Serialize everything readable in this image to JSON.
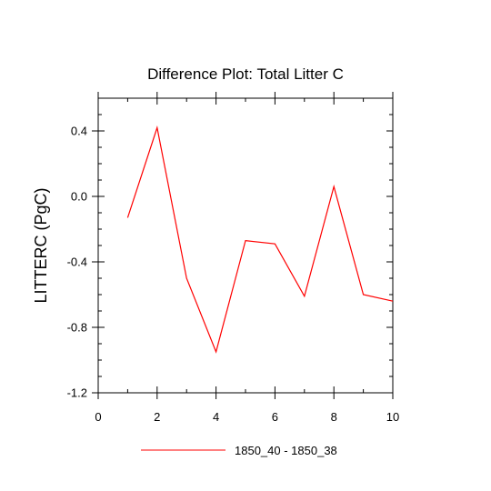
{
  "chart_data": {
    "type": "line",
    "title": "Difference Plot: Total Litter C",
    "xlabel": "",
    "ylabel": "LITTERC  (PgC)",
    "xlim": [
      0,
      10
    ],
    "ylim": [
      -1.2,
      0.6
    ],
    "xticks": [
      0,
      2,
      4,
      6,
      8,
      10
    ],
    "xtick_labels": [
      "0",
      "2",
      "4",
      "6",
      "8",
      "10"
    ],
    "yticks": [
      -1.2,
      -0.8,
      -0.4,
      0.0,
      0.4
    ],
    "ytick_labels": [
      "-1.2",
      "-0.8",
      "-0.4",
      "0.0",
      "0.4"
    ],
    "grid": false,
    "legend_position": "bottom",
    "series": [
      {
        "name": "1850_40 - 1850_38",
        "color": "#ff0000",
        "x": [
          1,
          2,
          3,
          4,
          5,
          6,
          7,
          8,
          9,
          10
        ],
        "y": [
          -0.13,
          0.42,
          -0.5,
          -0.95,
          -0.27,
          -0.29,
          -0.61,
          0.06,
          -0.6,
          -0.64
        ]
      }
    ]
  }
}
